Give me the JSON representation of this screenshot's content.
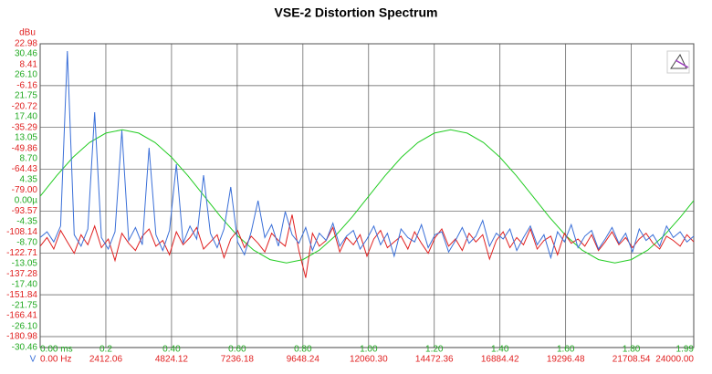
{
  "chart_data": [
    {
      "type": "line",
      "title": "VSE-2 Distortion Spectrum",
      "y_label": "dBu",
      "x": [
        0,
        250,
        500,
        750,
        1000,
        1250,
        1500,
        1750,
        2000,
        2250,
        2500,
        2750,
        3000,
        3250,
        3500,
        3750,
        4000,
        4250,
        4500,
        4750,
        5000,
        5250,
        5500,
        5750,
        6000,
        6250,
        6500,
        6750,
        7000,
        7250,
        7500,
        7750,
        8000,
        8250,
        8500,
        8750,
        9000,
        9250,
        9500,
        9750,
        10000,
        10250,
        10500,
        10750,
        11000,
        11250,
        11500,
        11750,
        12000,
        12250,
        12500,
        12750,
        13000,
        13250,
        13500,
        13750,
        14000,
        14250,
        14500,
        14750,
        15000,
        15250,
        15500,
        15750,
        16000,
        16250,
        16500,
        16750,
        17000,
        17250,
        17500,
        17750,
        18000,
        18250,
        18500,
        18750,
        19000,
        19250,
        19500,
        19750,
        20000,
        20250,
        20500,
        20750,
        21000,
        21250,
        21500,
        21750,
        22000,
        22250,
        22500,
        22750,
        23000,
        23250,
        23500,
        23750,
        24000
      ],
      "series": [
        {
          "color": "#e02020",
          "values": [
            -118,
            -112,
            -120,
            -107,
            -115,
            -123,
            -110,
            -117,
            -104,
            -119,
            -113,
            -128,
            -109,
            -116,
            -121,
            -111,
            -106,
            -118,
            -114,
            -124,
            -108,
            -117,
            -112,
            -105,
            -120,
            -115,
            -110,
            -126,
            -113,
            -107,
            -119,
            -111,
            -116,
            -122,
            -109,
            -114,
            -118,
            -96,
            -121,
            -140,
            -109,
            -118,
            -114,
            -105,
            -122,
            -112,
            -117,
            -110,
            -125,
            -113,
            -107,
            -119,
            -115,
            -111,
            -120,
            -108,
            -116,
            -123,
            -112,
            -106,
            -118,
            -113,
            -121,
            -109,
            -115,
            -110,
            -127,
            -114,
            -108,
            -119,
            -112,
            -117,
            -106,
            -120,
            -114,
            -111,
            -124,
            -109,
            -116,
            -113,
            -118,
            -110,
            -121,
            -115,
            -108,
            -117,
            -112,
            -119,
            -113,
            -109,
            -116,
            -120,
            -111,
            -114,
            -118,
            -110,
            -115
          ]
        },
        {
          "color": "#3a6fd8",
          "values": [
            -112,
            -108,
            -115,
            -104,
            17.9,
            -110,
            -118,
            -106,
            -24.7,
            -112,
            -120,
            -108,
            -37.4,
            -114,
            -105,
            -117,
            -49.5,
            -110,
            -121,
            -107,
            -60.9,
            -116,
            -104,
            -113,
            -68.5,
            -109,
            -119,
            -106,
            -76.8,
            -115,
            -124,
            -108,
            -86.3,
            -112,
            -103,
            -118,
            -93.9,
            -110,
            -116,
            -105,
            -121,
            -109,
            -114,
            -102,
            -118,
            -111,
            -107,
            -120,
            -113,
            -104,
            -117,
            -109,
            -125,
            -106,
            -112,
            -115,
            -103,
            -119,
            -110,
            -108,
            -122,
            -114,
            -105,
            -116,
            -111,
            -100,
            -118,
            -109,
            -113,
            -106,
            -121,
            -112,
            -104,
            -117,
            -110,
            -126,
            -108,
            -115,
            -103,
            -119,
            -111,
            -107,
            -120,
            -113,
            -105,
            -116,
            -109,
            -122,
            -106,
            -114,
            -110,
            -118,
            -104,
            -112,
            -108,
            -115,
            -111
          ]
        }
      ],
      "xlim": [
        0,
        24000
      ],
      "xticks": [
        {
          "value": 0,
          "label": "0.00 Hz"
        },
        2412.06,
        4824.12,
        7236.18,
        9648.24,
        {
          "value": 12060.3,
          "label": "12060.30"
        },
        14472.36,
        16884.42,
        19296.48,
        21708.54,
        {
          "value": 24000,
          "label": "24000.00"
        }
      ],
      "ylim": [
        -180.98,
        22.98
      ],
      "yticks": [
        22.98,
        8.41,
        -6.16,
        -20.72,
        -35.29,
        -49.86,
        -64.43,
        {
          "value": -79,
          "label": "-79.00"
        },
        -93.57,
        -108.14,
        -122.71,
        -137.28,
        -151.84,
        -166.41,
        -180.98
      ],
      "grid": true
    },
    {
      "type": "line",
      "y_label": "V",
      "x": [
        0,
        0.05,
        0.1,
        0.15,
        0.2,
        0.25,
        0.3,
        0.35,
        0.4,
        0.45,
        0.5,
        0.55,
        0.6,
        0.65,
        0.7,
        0.75,
        0.8,
        0.85,
        0.9,
        0.95,
        1,
        1.05,
        1.1,
        1.15,
        1.2,
        1.25,
        1.3,
        1.35,
        1.4,
        1.45,
        1.5,
        1.55,
        1.6,
        1.65,
        1.7,
        1.75,
        1.8,
        1.85,
        1.9,
        1.95,
        1.99
      ],
      "series": [
        {
          "color": "#22cc22",
          "values": [
            0.9,
            5.16,
            9.01,
            12.06,
            14.02,
            14.7,
            14.02,
            12.06,
            9.01,
            5.16,
            0.9,
            -3.36,
            -7.21,
            -10.26,
            -12.22,
            -12.9,
            -12.22,
            -10.26,
            -7.21,
            -3.36,
            0.9,
            5.16,
            9.01,
            12.06,
            14.02,
            14.7,
            14.02,
            12.06,
            9.01,
            5.16,
            0.9,
            -3.36,
            -7.21,
            -10.26,
            -12.22,
            -12.9,
            -12.22,
            -10.26,
            -7.21,
            -3.36,
            0.03
          ]
        }
      ],
      "xlim": [
        0,
        1.99
      ],
      "xticks": [
        {
          "value": 0,
          "label": "0.00 ms"
        },
        0.2,
        {
          "value": 0.4,
          "label": "0.40"
        },
        {
          "value": 0.6,
          "label": "0.60"
        },
        {
          "value": 0.8,
          "label": "0.80"
        },
        {
          "value": 1,
          "label": "1.00"
        },
        {
          "value": 1.2,
          "label": "1.20"
        },
        {
          "value": 1.4,
          "label": "1.40"
        },
        {
          "value": 1.6,
          "label": "1.60"
        },
        {
          "value": 1.8,
          "label": "1.80"
        },
        1.99
      ],
      "ylim": [
        -30.46,
        30.46
      ],
      "yticks": [
        30.46,
        {
          "value": 26.1,
          "label": "26.10"
        },
        21.75,
        {
          "value": 17.4,
          "label": "17.40"
        },
        13.05,
        {
          "value": 8.7,
          "label": "8.70"
        },
        4.35,
        {
          "value": 0,
          "label": "0.00µ"
        },
        -4.35,
        {
          "value": -8.7,
          "label": "-8.70"
        },
        -13.05,
        {
          "value": -17.4,
          "label": "-17.40"
        },
        -21.75,
        {
          "value": -26.1,
          "label": "-26.10"
        },
        -30.46
      ],
      "grid": true
    }
  ]
}
